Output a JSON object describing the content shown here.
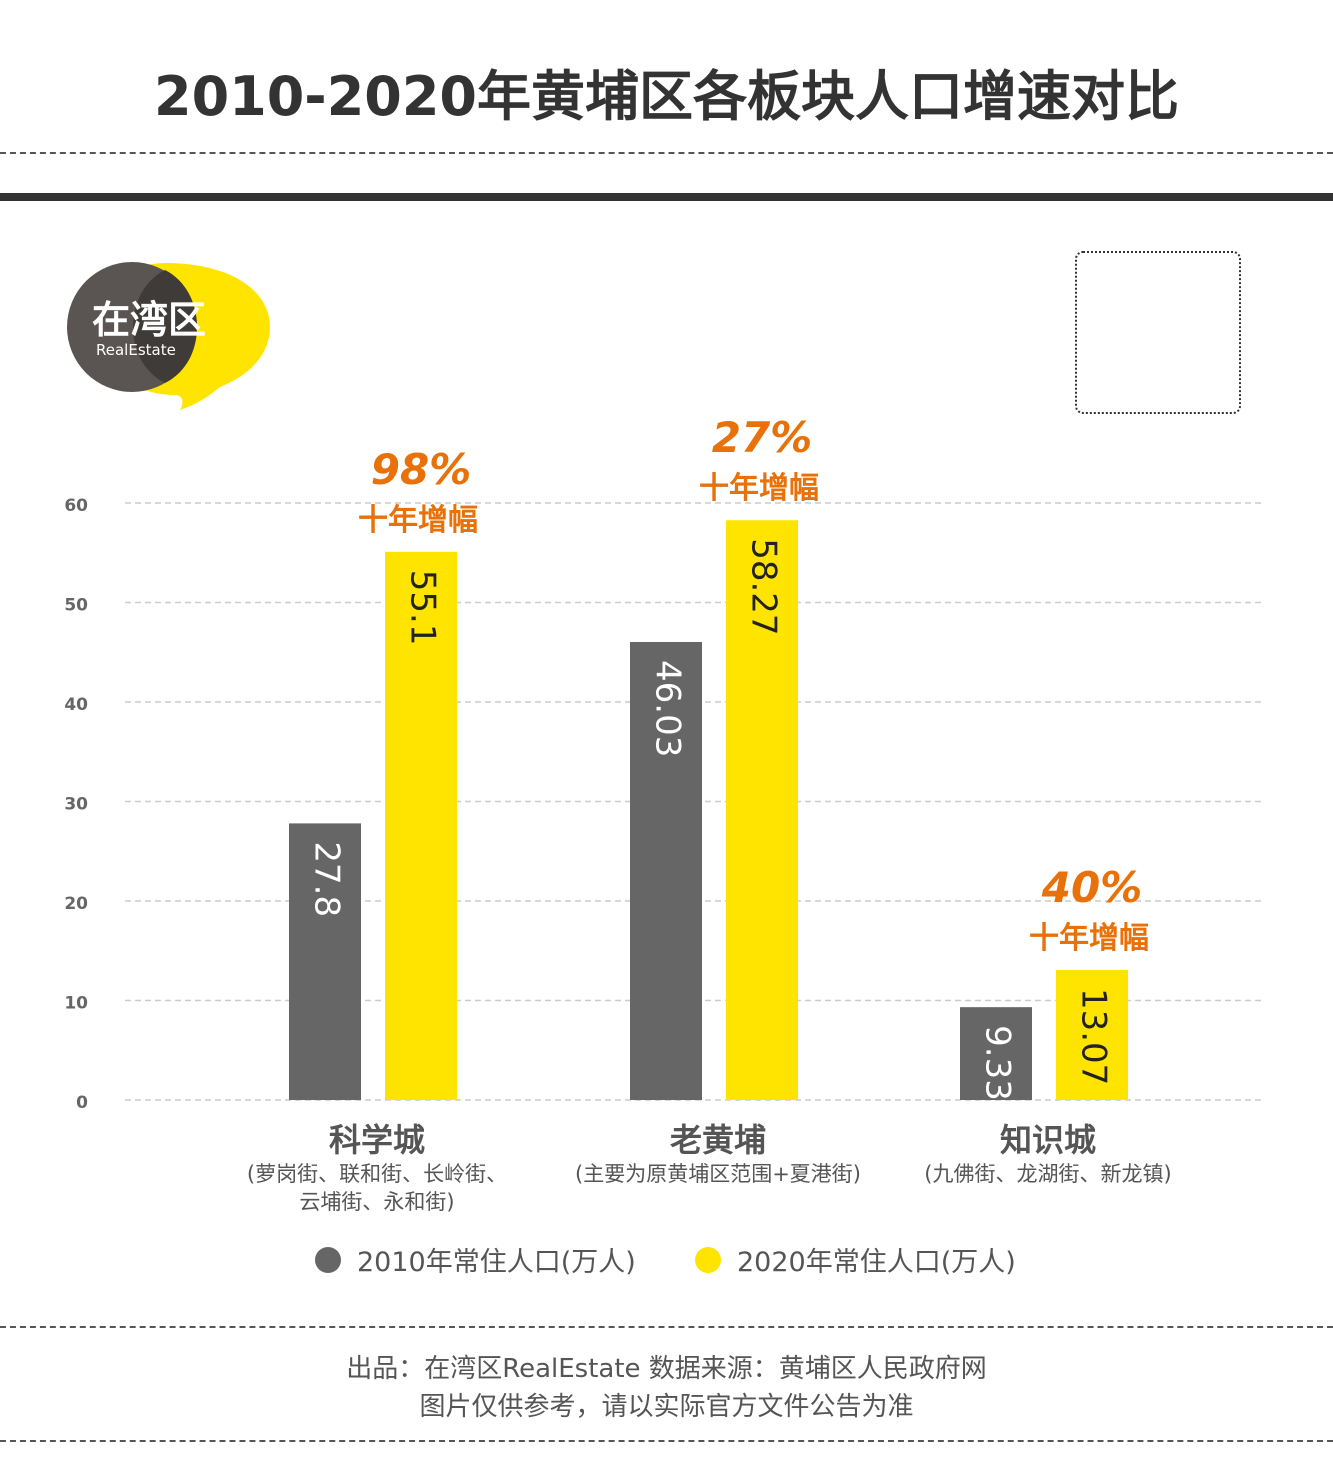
{
  "title": "2010-2020年黄埔区各板块人口增速对比",
  "logo": {
    "name": "在湾区",
    "sub": "RealEstate"
  },
  "colors": {
    "gray": "#666666",
    "yellow": "#FFE400",
    "orange": "#E8710A",
    "axis_text": "#666666"
  },
  "chart_data": {
    "type": "bar",
    "categories": [
      "科学城",
      "老黄埔",
      "知识城"
    ],
    "category_notes": [
      [
        "(萝岗街、联和街、长岭街、",
        "云埔街、永和街)"
      ],
      [
        "(主要为原黄埔区范围+夏港街)"
      ],
      [
        "(九佛街、龙湖街、新龙镇)"
      ]
    ],
    "series": [
      {
        "name": "2010年常住人口(万人)",
        "values": [
          27.8,
          46.03,
          9.33
        ]
      },
      {
        "name": "2020年常住人口(万人)",
        "values": [
          55.1,
          58.27,
          13.07
        ]
      }
    ],
    "value_labels": [
      [
        "27.8",
        "46.03",
        "9.33"
      ],
      [
        "55.1",
        "58.27",
        "13.07"
      ]
    ],
    "growth_annotations": [
      {
        "pct": "98%",
        "label": "十年增幅"
      },
      {
        "pct": "27%",
        "label": "十年增幅"
      },
      {
        "pct": "40%",
        "label": "十年增幅"
      }
    ],
    "ylim": [
      0,
      60
    ],
    "yticks": [
      "0",
      "10",
      "20",
      "30",
      "40",
      "50",
      "60"
    ],
    "grid": true,
    "legend_position": "bottom"
  },
  "footer": {
    "line1": "出品：在湾区RealEstate   数据来源：黄埔区人民政府网",
    "line2": "图片仅供参考，请以实际官方文件公告为准"
  }
}
